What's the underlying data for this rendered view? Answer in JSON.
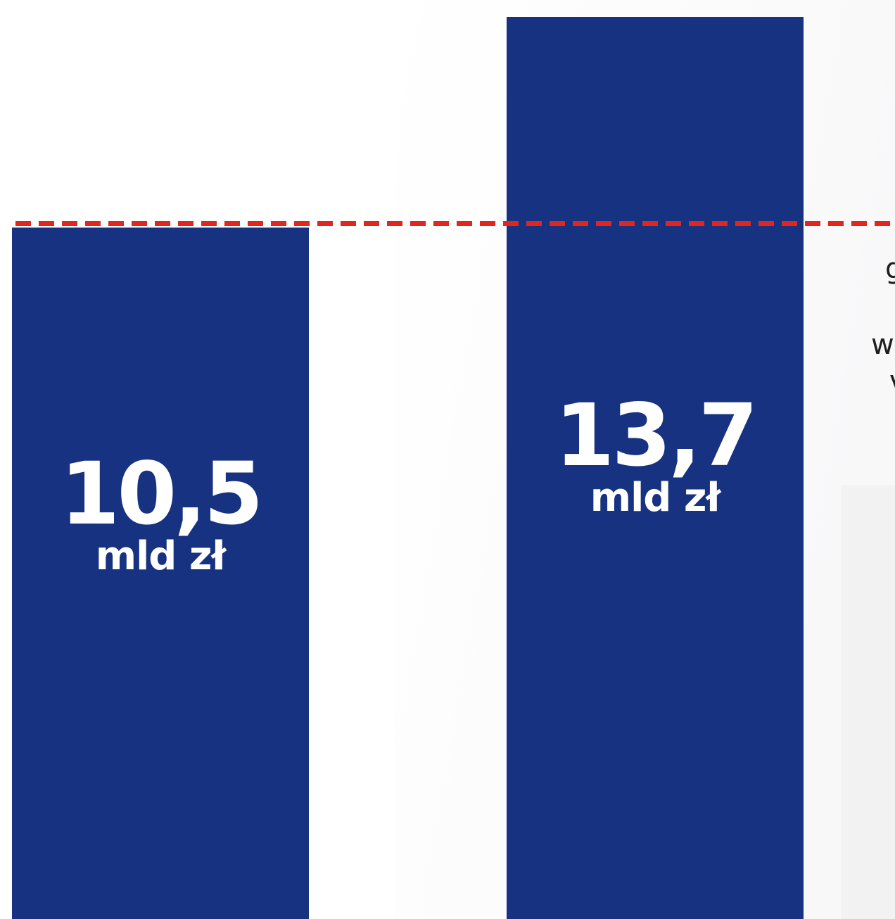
{
  "colors": {
    "bar": "#173280",
    "threshold": "#e0261f",
    "background": "#ffffff",
    "label": "#ffffff"
  },
  "chart_data": {
    "type": "bar",
    "categories": [
      "",
      ""
    ],
    "values": [
      10.5,
      13.7
    ],
    "value_labels": [
      "10,5",
      "13,7"
    ],
    "unit_label": "mld zł",
    "reference_line": {
      "value": 10.5,
      "style": "dashed",
      "color": "#e0261f"
    },
    "ylim": [
      0,
      13.7
    ],
    "grid": false,
    "legend": "none",
    "title": "",
    "xlabel": "",
    "ylabel": ""
  },
  "side_text": [
    "g",
    "w",
    "v"
  ]
}
